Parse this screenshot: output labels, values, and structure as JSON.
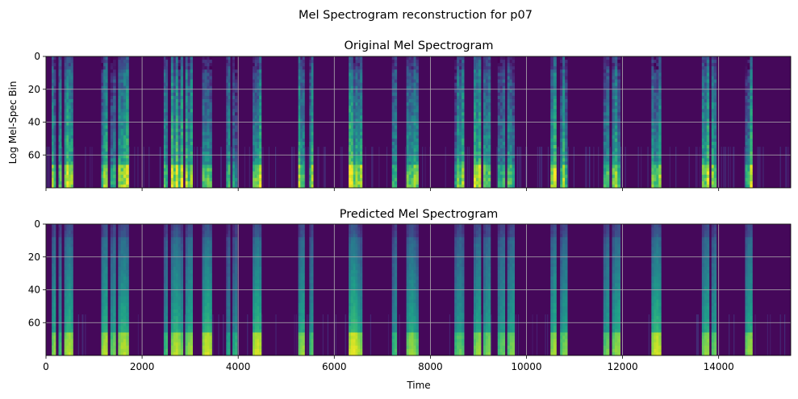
{
  "figure": {
    "suptitle": "Mel Spectrogram reconstruction for p07"
  },
  "colors": {
    "viridis": [
      "#440154",
      "#482878",
      "#3e4989",
      "#31688e",
      "#26828e",
      "#1f9e89",
      "#35b779",
      "#6ece58",
      "#b5de2b",
      "#fde725"
    ],
    "grid": "#b0b0b0"
  },
  "chart_data": [
    {
      "type": "heatmap",
      "title": "Original Mel Spectrogram",
      "xlabel": "",
      "ylabel": "Log Mel-Spec Bin",
      "xlim": [
        0,
        15500
      ],
      "ylim": [
        80,
        0
      ],
      "xticks": [
        0,
        2000,
        4000,
        6000,
        8000,
        10000,
        12000,
        14000
      ],
      "show_xtick_labels": false,
      "yticks": [
        0,
        20,
        40,
        60
      ],
      "grid": true,
      "colormap": "viridis",
      "speech_segments": [
        [
          120,
          200,
          0.85
        ],
        [
          260,
          320,
          0.7
        ],
        [
          380,
          560,
          0.9
        ],
        [
          1150,
          1280,
          0.85
        ],
        [
          1340,
          1450,
          0.8
        ],
        [
          1500,
          1720,
          0.9
        ],
        [
          2450,
          2530,
          0.7
        ],
        [
          2600,
          2850,
          0.9
        ],
        [
          2900,
          3050,
          0.8
        ],
        [
          3250,
          3450,
          0.9
        ],
        [
          3750,
          3830,
          0.6
        ],
        [
          3880,
          3980,
          0.65
        ],
        [
          4300,
          4480,
          0.95
        ],
        [
          5250,
          5380,
          0.8
        ],
        [
          5480,
          5560,
          0.75
        ],
        [
          6300,
          6580,
          1.0
        ],
        [
          7200,
          7300,
          0.7
        ],
        [
          7500,
          7750,
          0.85
        ],
        [
          8500,
          8700,
          0.75
        ],
        [
          8900,
          9050,
          0.85
        ],
        [
          9100,
          9250,
          0.8
        ],
        [
          9400,
          9550,
          0.75
        ],
        [
          9600,
          9750,
          0.8
        ],
        [
          10500,
          10620,
          0.9
        ],
        [
          10700,
          10850,
          0.8
        ],
        [
          11600,
          11720,
          0.8
        ],
        [
          11780,
          11950,
          0.85
        ],
        [
          12600,
          12800,
          0.9
        ],
        [
          13650,
          13800,
          0.85
        ],
        [
          13850,
          13950,
          0.8
        ],
        [
          14550,
          14700,
          0.85
        ]
      ]
    },
    {
      "type": "heatmap",
      "title": "Predicted Mel Spectrogram",
      "xlabel": "Time",
      "ylabel": "",
      "xlim": [
        0,
        15500
      ],
      "ylim": [
        80,
        0
      ],
      "xticks": [
        0,
        2000,
        4000,
        6000,
        8000,
        10000,
        12000,
        14000
      ],
      "show_xtick_labels": true,
      "yticks": [
        0,
        20,
        40,
        60
      ],
      "grid": true,
      "colormap": "viridis",
      "speech_segments": [
        [
          120,
          200,
          0.85
        ],
        [
          260,
          320,
          0.7
        ],
        [
          380,
          560,
          0.9
        ],
        [
          1150,
          1280,
          0.9
        ],
        [
          1340,
          1450,
          0.8
        ],
        [
          1500,
          1720,
          0.9
        ],
        [
          2450,
          2530,
          0.7
        ],
        [
          2600,
          2850,
          0.9
        ],
        [
          2900,
          3050,
          0.85
        ],
        [
          3250,
          3450,
          0.95
        ],
        [
          3750,
          3830,
          0.6
        ],
        [
          3880,
          3980,
          0.65
        ],
        [
          4300,
          4480,
          0.95
        ],
        [
          5250,
          5380,
          0.85
        ],
        [
          5480,
          5560,
          0.75
        ],
        [
          6300,
          6580,
          1.0
        ],
        [
          7200,
          7300,
          0.7
        ],
        [
          7500,
          7750,
          0.85
        ],
        [
          8500,
          8700,
          0.75
        ],
        [
          8900,
          9050,
          0.85
        ],
        [
          9100,
          9250,
          0.8
        ],
        [
          9400,
          9550,
          0.75
        ],
        [
          9600,
          9750,
          0.8
        ],
        [
          10500,
          10620,
          0.9
        ],
        [
          10700,
          10850,
          0.8
        ],
        [
          11600,
          11720,
          0.8
        ],
        [
          11780,
          11950,
          0.85
        ],
        [
          12600,
          12800,
          0.95
        ],
        [
          13650,
          13800,
          0.85
        ],
        [
          13850,
          13950,
          0.8
        ],
        [
          14550,
          14700,
          0.85
        ]
      ]
    }
  ]
}
